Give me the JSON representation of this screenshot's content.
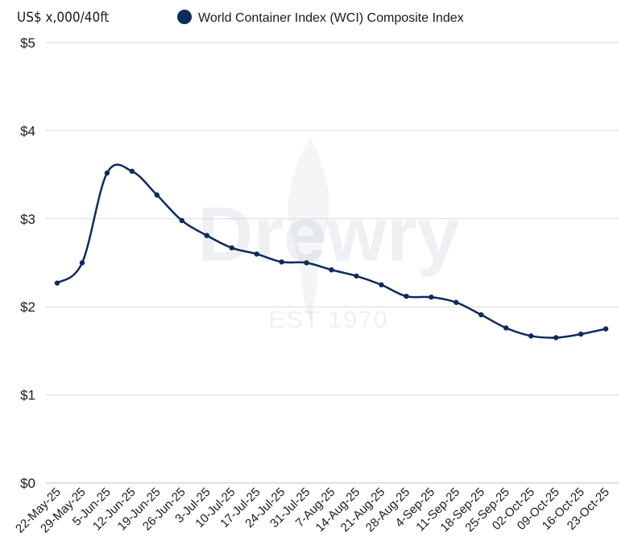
{
  "chart_data": {
    "type": "line",
    "ylabel": "US$ x,000/40ft",
    "ylim": [
      0,
      5
    ],
    "yticks": [
      0,
      1,
      2,
      3,
      4,
      5
    ],
    "ytick_labels": [
      "$0",
      "$1",
      "$2",
      "$3",
      "$4",
      "$5"
    ],
    "grid": true,
    "legend_position": "top",
    "categories": [
      "22-May-25",
      "29-May-25",
      "5-Jun-25",
      "12-Jun-25",
      "19-Jun-25",
      "26-Jun-25",
      "3-Jul-25",
      "10-Jul-25",
      "17-Jul-25",
      "24-Jul-25",
      "31-Jul-25",
      "7-Aug-25",
      "14-Aug-25",
      "21-Aug-25",
      "28-Aug-25",
      "4-Sep-25",
      "11-Sep-25",
      "18-Sep-25",
      "25-Sep-25",
      "02-Oct-25",
      "09-Oct-25",
      "16-Oct-25",
      "23-Oct-25"
    ],
    "series": [
      {
        "name": "World Container Index (WCI) Composite Index",
        "color": "#0d2b5c",
        "values": [
          2.27,
          2.5,
          3.52,
          3.54,
          3.27,
          2.98,
          2.81,
          2.67,
          2.6,
          2.51,
          2.5,
          2.42,
          2.35,
          2.25,
          2.12,
          2.11,
          2.05,
          1.91,
          1.76,
          1.67,
          1.65,
          1.69,
          1.75
        ]
      }
    ]
  },
  "watermark": {
    "logo_text": "Drewry",
    "tagline": "EST 1970"
  },
  "colors": {
    "series": "#0d2b5c",
    "grid": "#d9d9d9",
    "text": "#1a1a1a"
  }
}
